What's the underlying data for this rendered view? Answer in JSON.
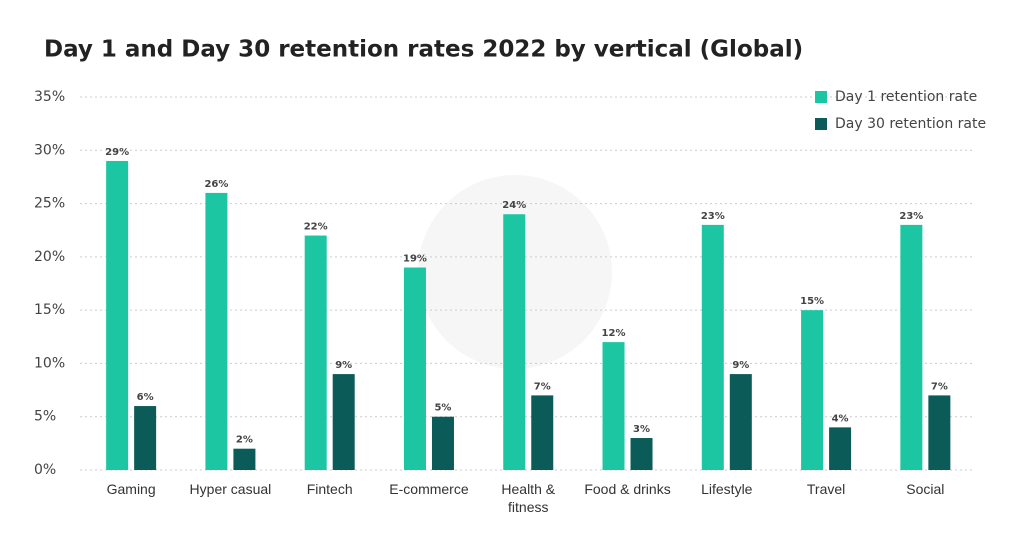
{
  "chart_data": {
    "type": "bar",
    "title": "Day 1 and Day 30 retention rates 2022 by vertical (Global)",
    "categories": [
      "Gaming",
      "Hyper casual",
      "Fintech",
      "E-commerce",
      "Health & fitness",
      "Food & drinks",
      "Lifestyle",
      "Travel",
      "Social"
    ],
    "series": [
      {
        "name": "Day 1 retention rate",
        "color": "#1cc6a3",
        "values": [
          29,
          26,
          22,
          19,
          24,
          12,
          23,
          15,
          23
        ],
        "value_labels": [
          "29%",
          "26%",
          "22%",
          "19%",
          "24%",
          "12%",
          "23%",
          "15%",
          "23%"
        ]
      },
      {
        "name": "Day 30 retention rate",
        "color": "#0b5c58",
        "values": [
          6,
          2,
          9,
          5,
          7,
          3,
          9,
          4,
          7
        ],
        "value_labels": [
          "6%",
          "2%",
          "9%",
          "5%",
          "7%",
          "3%",
          "9%",
          "4%",
          "7%"
        ]
      }
    ],
    "ylim": [
      0,
      35
    ],
    "yticks": [
      {
        "value": 0,
        "label": "0%"
      },
      {
        "value": 5,
        "label": "5%"
      },
      {
        "value": 10,
        "label": "10%"
      },
      {
        "value": 15,
        "label": "15%"
      },
      {
        "value": 20,
        "label": "20%"
      },
      {
        "value": 25,
        "label": "25%"
      },
      {
        "value": 30,
        "label": "30%"
      },
      {
        "value": 35,
        "label": "35%"
      }
    ],
    "grid": true,
    "legend": "top-right"
  }
}
